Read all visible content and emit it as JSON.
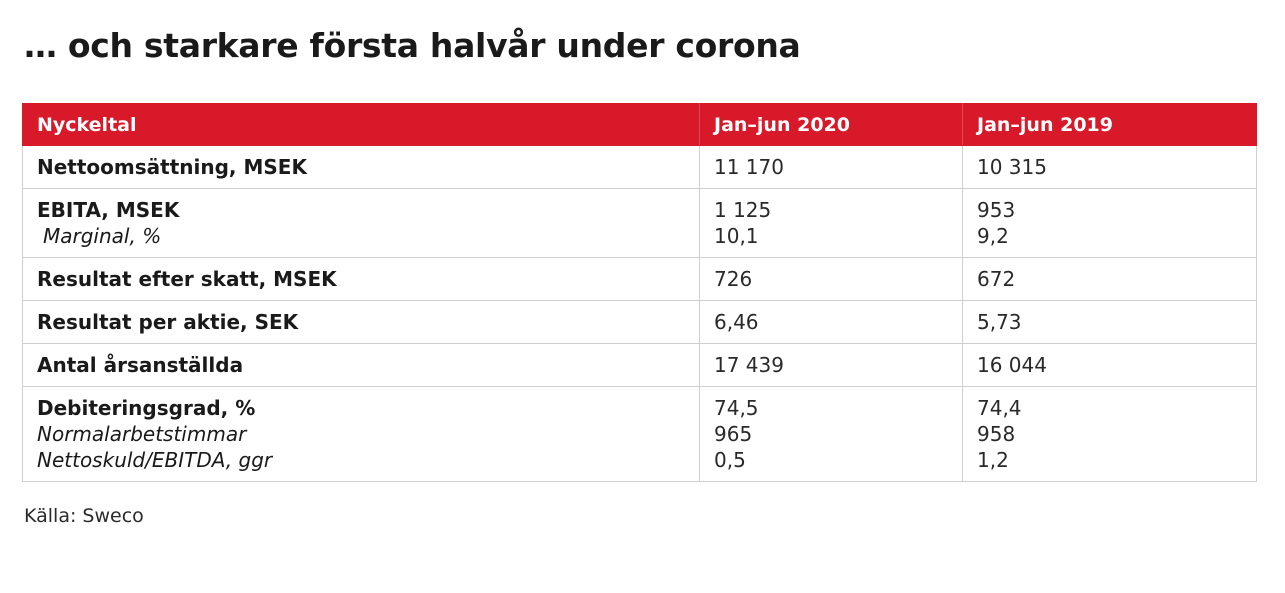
{
  "title": "… och starkare första halvår under corona",
  "table": {
    "headers": [
      "Nyckeltal",
      "Jan–jun 2020",
      "Jan–jun 2019"
    ],
    "rows": [
      {
        "label": "Nettoomsättning, MSEK",
        "sub": [],
        "v2020": [
          "11 170"
        ],
        "v2019": [
          "10 315"
        ]
      },
      {
        "label": "EBITA, MSEK",
        "sub": [
          " Marginal, %"
        ],
        "v2020": [
          "1 125",
          "10,1"
        ],
        "v2019": [
          "953",
          "9,2"
        ]
      },
      {
        "label": "Resultat efter skatt, MSEK",
        "sub": [],
        "v2020": [
          "726"
        ],
        "v2019": [
          "672"
        ]
      },
      {
        "label": "Resultat per aktie, SEK",
        "sub": [],
        "v2020": [
          "6,46"
        ],
        "v2019": [
          "5,73"
        ]
      },
      {
        "label": "Antal årsanställda",
        "sub": [],
        "v2020": [
          "17 439"
        ],
        "v2019": [
          "16 044"
        ]
      },
      {
        "label": "Debiteringsgrad, %",
        "sub": [
          "Normalarbetstimmar",
          "Nettoskuld/EBITDA, ggr"
        ],
        "v2020": [
          "74,5",
          "965",
          "0,5"
        ],
        "v2019": [
          "74,4",
          "958",
          "1,2"
        ]
      }
    ]
  },
  "source": "Källa: Sweco",
  "colors": {
    "header_bg": "#d7192a",
    "header_text": "#ffffff",
    "border": "#cfcfcf"
  }
}
